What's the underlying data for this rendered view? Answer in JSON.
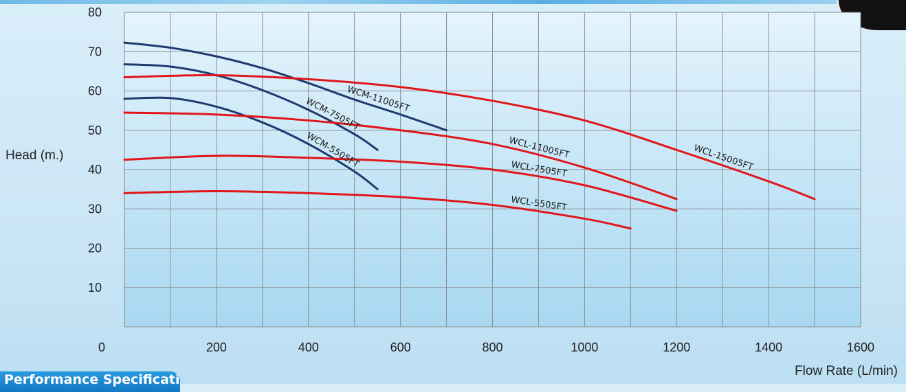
{
  "chart_data": {
    "type": "line",
    "xlabel": "Flow Rate (L/min)",
    "ylabel": "Head (m.)",
    "xlim": [
      0,
      1600
    ],
    "ylim": [
      0,
      80
    ],
    "x_ticks": [
      "0",
      "200",
      "400",
      "600",
      "800",
      "1000",
      "1200",
      "1400",
      "1600"
    ],
    "y_ticks": [
      "10",
      "20",
      "30",
      "40",
      "50",
      "60",
      "70",
      "80"
    ],
    "grid": true,
    "series": [
      {
        "name": "WCM-11005FT",
        "color": "#1f3a6e",
        "x": [
          0,
          100,
          200,
          300,
          400,
          500,
          600,
          700
        ],
        "y": [
          72.3,
          71.0,
          68.8,
          65.8,
          62.0,
          57.8,
          54.0,
          50.0
        ]
      },
      {
        "name": "WCM-7505FT",
        "color": "#1f3a6e",
        "x": [
          0,
          100,
          200,
          300,
          400,
          500,
          550
        ],
        "y": [
          66.8,
          66.2,
          64.0,
          60.2,
          55.2,
          49.0,
          45.0
        ]
      },
      {
        "name": "WCM-5505FT",
        "color": "#1f3a6e",
        "x": [
          0,
          100,
          200,
          300,
          400,
          500,
          550
        ],
        "y": [
          58.0,
          58.2,
          56.0,
          52.0,
          46.5,
          39.5,
          35.0
        ]
      },
      {
        "name": "WCL-15005FT",
        "color": "#e0161b",
        "x": [
          0,
          200,
          400,
          600,
          800,
          1000,
          1200,
          1400,
          1500
        ],
        "y": [
          63.5,
          64.0,
          63.0,
          61.0,
          57.5,
          52.5,
          45.0,
          37.0,
          32.5
        ]
      },
      {
        "name": "WCL-11005FT",
        "color": "#e0161b",
        "x": [
          0,
          200,
          400,
          600,
          800,
          1000,
          1200
        ],
        "y": [
          54.5,
          54.0,
          52.5,
          50.0,
          46.5,
          40.5,
          32.5
        ]
      },
      {
        "name": "WCL-7505FT",
        "color": "#e0161b",
        "x": [
          0,
          200,
          400,
          600,
          800,
          1000,
          1200
        ],
        "y": [
          42.5,
          43.5,
          43.0,
          42.0,
          40.0,
          36.0,
          29.5
        ]
      },
      {
        "name": "WCL-5505FT",
        "color": "#e0161b",
        "x": [
          0,
          200,
          400,
          600,
          800,
          1000,
          1100
        ],
        "y": [
          34.0,
          34.5,
          34.0,
          33.0,
          31.0,
          27.5,
          25.0
        ]
      }
    ]
  },
  "footer": {
    "banner_text": "Performance Specifications"
  }
}
